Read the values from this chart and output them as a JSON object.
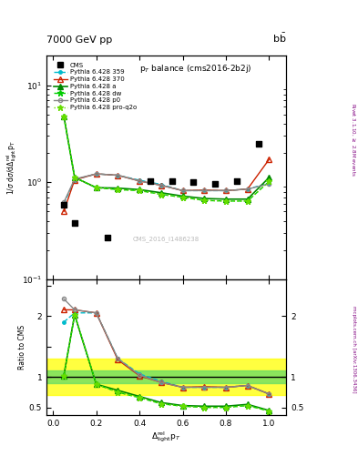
{
  "title_top": "7000 GeV pp",
  "title_right": "b$\\bar{\\text{b}}$",
  "plot_title": "p$_T$ balance (cms2016-2b2j)",
  "ylabel_main": "1/$\\sigma$ d$\\sigma$/d$\\Delta^{\\rm rel}_{\\rm light}$p$_T$",
  "ylabel_ratio": "Ratio to CMS",
  "xlabel": "$\\Delta^{\\rm rel}_{\\rm light}$p$_T$",
  "right_label_main": "Rivet 3.1.10, $\\geq$ 2.8M events",
  "right_label_ratio": "mcplots.cern.ch [arXiv:1306.3436]",
  "watermark": "CMS_2016_I1486238",
  "cms_x": [
    0.05,
    0.1,
    0.25,
    0.45,
    0.55,
    0.65,
    0.75,
    0.85,
    0.95
  ],
  "cms_y": [
    0.58,
    0.38,
    0.27,
    1.02,
    1.02,
    1.0,
    0.97,
    1.02,
    2.5
  ],
  "p359_x": [
    0.05,
    0.1,
    0.2,
    0.3,
    0.4,
    0.5,
    0.6,
    0.7,
    0.8,
    0.9,
    1.0
  ],
  "p359_y": [
    0.6,
    1.06,
    1.22,
    1.18,
    1.05,
    0.95,
    0.82,
    0.82,
    0.82,
    0.85,
    0.98
  ],
  "p370_x": [
    0.05,
    0.1,
    0.2,
    0.3,
    0.4,
    0.5,
    0.6,
    0.7,
    0.8,
    0.9,
    1.0
  ],
  "p370_y": [
    0.5,
    1.06,
    1.22,
    1.18,
    1.03,
    0.93,
    0.82,
    0.83,
    0.82,
    0.85,
    1.72
  ],
  "pa_x": [
    0.05,
    0.1,
    0.2,
    0.3,
    0.4,
    0.5,
    0.6,
    0.7,
    0.8,
    0.9,
    1.0
  ],
  "pa_y": [
    4.8,
    1.12,
    0.88,
    0.87,
    0.84,
    0.78,
    0.72,
    0.68,
    0.67,
    0.67,
    1.12
  ],
  "pdw_x": [
    0.05,
    0.1,
    0.2,
    0.3,
    0.4,
    0.5,
    0.6,
    0.7,
    0.8,
    0.9,
    1.0
  ],
  "pdw_y": [
    4.8,
    1.12,
    0.88,
    0.84,
    0.82,
    0.75,
    0.7,
    0.65,
    0.64,
    0.64,
    1.02
  ],
  "pp0_x": [
    0.05,
    0.1,
    0.2,
    0.3,
    0.4,
    0.5,
    0.6,
    0.7,
    0.8,
    0.9,
    1.0
  ],
  "pp0_y": [
    0.62,
    1.08,
    1.22,
    1.18,
    1.03,
    0.93,
    0.82,
    0.82,
    0.82,
    0.85,
    0.96
  ],
  "pproq2o_x": [
    0.05,
    0.1,
    0.2,
    0.3,
    0.4,
    0.5,
    0.6,
    0.7,
    0.8,
    0.9,
    1.0
  ],
  "pproq2o_y": [
    4.8,
    1.12,
    0.88,
    0.84,
    0.82,
    0.75,
    0.7,
    0.65,
    0.64,
    0.64,
    1.02
  ],
  "ratio_x": [
    0.05,
    0.1,
    0.2,
    0.3,
    0.4,
    0.5,
    0.6,
    0.7,
    0.8,
    0.9,
    1.0
  ],
  "ratio_p359": [
    1.9,
    2.05,
    2.05,
    1.3,
    1.05,
    0.93,
    0.83,
    0.83,
    0.83,
    0.86,
    0.72
  ],
  "ratio_p370": [
    2.1,
    2.1,
    2.05,
    1.28,
    1.02,
    0.91,
    0.83,
    0.84,
    0.83,
    0.86,
    0.72
  ],
  "ratio_pa": [
    1.02,
    2.02,
    0.88,
    0.78,
    0.68,
    0.58,
    0.53,
    0.52,
    0.52,
    0.55,
    0.45
  ],
  "ratio_pdw": [
    1.02,
    2.02,
    0.88,
    0.75,
    0.66,
    0.56,
    0.52,
    0.5,
    0.5,
    0.53,
    0.44
  ],
  "ratio_pp0": [
    2.28,
    2.1,
    2.05,
    1.3,
    1.03,
    0.91,
    0.83,
    0.83,
    0.83,
    0.86,
    0.72
  ],
  "ratio_pproq2o": [
    1.02,
    2.02,
    0.88,
    0.75,
    0.66,
    0.56,
    0.52,
    0.5,
    0.5,
    0.53,
    0.44
  ],
  "color_359": "#00BBCC",
  "color_370": "#CC2200",
  "color_a": "#008800",
  "color_dw": "#00CC00",
  "color_p0": "#888888",
  "color_proq2o": "#66DD00",
  "band_green_lo": 0.9,
  "band_green_hi": 1.1,
  "band_yellow_lo": 0.7,
  "band_yellow_hi": 1.3,
  "ylim_main": [
    0.1,
    20.0
  ],
  "ylim_ratio": [
    0.38,
    2.6
  ]
}
